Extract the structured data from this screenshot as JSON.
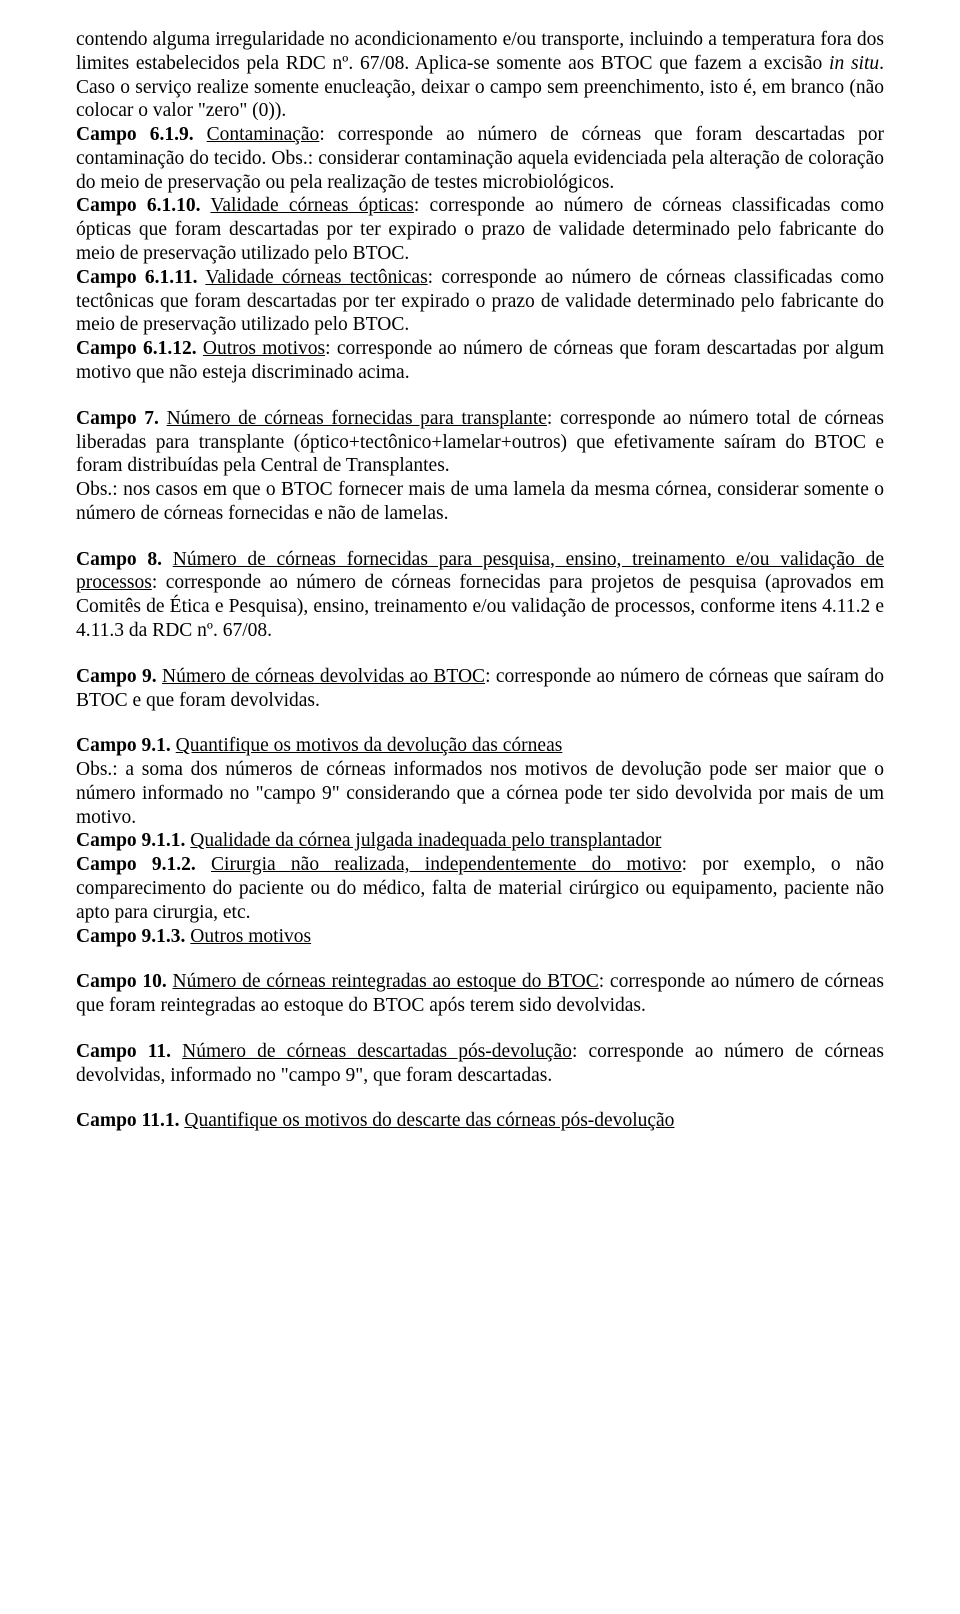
{
  "p1a": "contendo alguma irregularidade no acondicionamento e/ou transporte, incluindo a temperatura fora dos limites estabelecidos pela RDC nº. 67/08. Aplica-se somente aos BTOC que fazem a excisão ",
  "p1b": "in situ",
  "p1c": ". Caso o serviço realize somente enucleação, deixar o campo sem preenchimento, isto é, em branco (não colocar o valor \"zero\" (0)).",
  "c619_label": "Campo 6.1.9.",
  "c619_u": "Contaminação",
  "c619_body": ": corresponde ao número de córneas que foram descartadas por contaminação do tecido. Obs.: considerar contaminação aquela evidenciada pela alteração de coloração do meio de preservação ou pela realização de testes microbiológicos.",
  "c6110_label": "Campo 6.1.10.",
  "c6110_u": "Validade córneas ópticas",
  "c6110_body": ": corresponde ao número de córneas classificadas como ópticas que foram descartadas por ter expirado o prazo de validade determinado pelo fabricante do meio de preservação utilizado pelo BTOC.",
  "c6111_label": "Campo 6.1.11.",
  "c6111_u": "Validade córneas tectônicas",
  "c6111_body": ": corresponde ao número de córneas classificadas como tectônicas que foram descartadas por ter expirado o prazo de validade determinado pelo fabricante do meio de preservação utilizado pelo BTOC.",
  "c6112_label": "Campo 6.1.12.",
  "c6112_u": "Outros motivos",
  "c6112_body": ": corresponde ao número de córneas que foram descartadas por algum motivo que não esteja discriminado acima.",
  "c7_label": "Campo 7.",
  "c7_u": "Número de córneas fornecidas para transplante",
  "c7_body": ": corresponde ao número total de córneas liberadas para transplante (óptico+tectônico+lamelar+outros) que efetivamente saíram do BTOC e foram distribuídas pela Central de Transplantes.",
  "c7_obs": "Obs.: nos casos em que o BTOC fornecer mais de uma lamela da mesma córnea, considerar somente o número de córneas fornecidas e não de lamelas.",
  "c8_label": "Campo 8.",
  "c8_u": "Número de córneas fornecidas para pesquisa, ensino, treinamento e/ou validação de processos",
  "c8_body": ": corresponde ao número de córneas fornecidas para projetos de pesquisa (aprovados em Comitês de Ética e Pesquisa), ensino, treinamento e/ou validação de processos, conforme itens 4.11.2 e 4.11.3 da RDC nº. 67/08.",
  "c9_label": "Campo 9.",
  "c9_u": "Número de córneas devolvidas ao BTOC",
  "c9_body": ": corresponde ao número de córneas que saíram do BTOC e que foram devolvidas.",
  "c91_label": "Campo 9.1.",
  "c91_u": "Quantifique os motivos da devolução das córneas",
  "c91_obs": "Obs.: a soma dos números de córneas informados nos motivos de devolução pode ser maior que o número informado no \"campo 9\" considerando que a córnea pode ter sido devolvida por mais de um motivo.",
  "c911_label": "Campo 9.1.1.",
  "c911_u": "Qualidade da córnea julgada inadequada pelo transplantador",
  "c912_label": "Campo 9.1.2.",
  "c912_u": "Cirurgia não realizada, independentemente do motivo",
  "c912_body": ": por exemplo, o não comparecimento do paciente ou do médico, falta de material cirúrgico ou equipamento, paciente não apto para cirurgia, etc.",
  "c913_label": "Campo 9.1.3.",
  "c913_u": "Outros motivos",
  "c10_label": "Campo 10.",
  "c10_u": "Número de córneas reintegradas ao estoque do BTOC",
  "c10_body": ": corresponde ao número de córneas que foram reintegradas ao estoque do BTOC após terem sido devolvidas.",
  "c11_label": "Campo 11.",
  "c11_u": "Número de córneas descartadas pós-devolução",
  "c11_body": ": corresponde ao número de córneas devolvidas, informado no \"campo 9\", que foram descartadas.",
  "c111_label": "Campo 11.1.",
  "c111_u": "Quantifique os motivos do descarte das córneas pós-devolução"
}
